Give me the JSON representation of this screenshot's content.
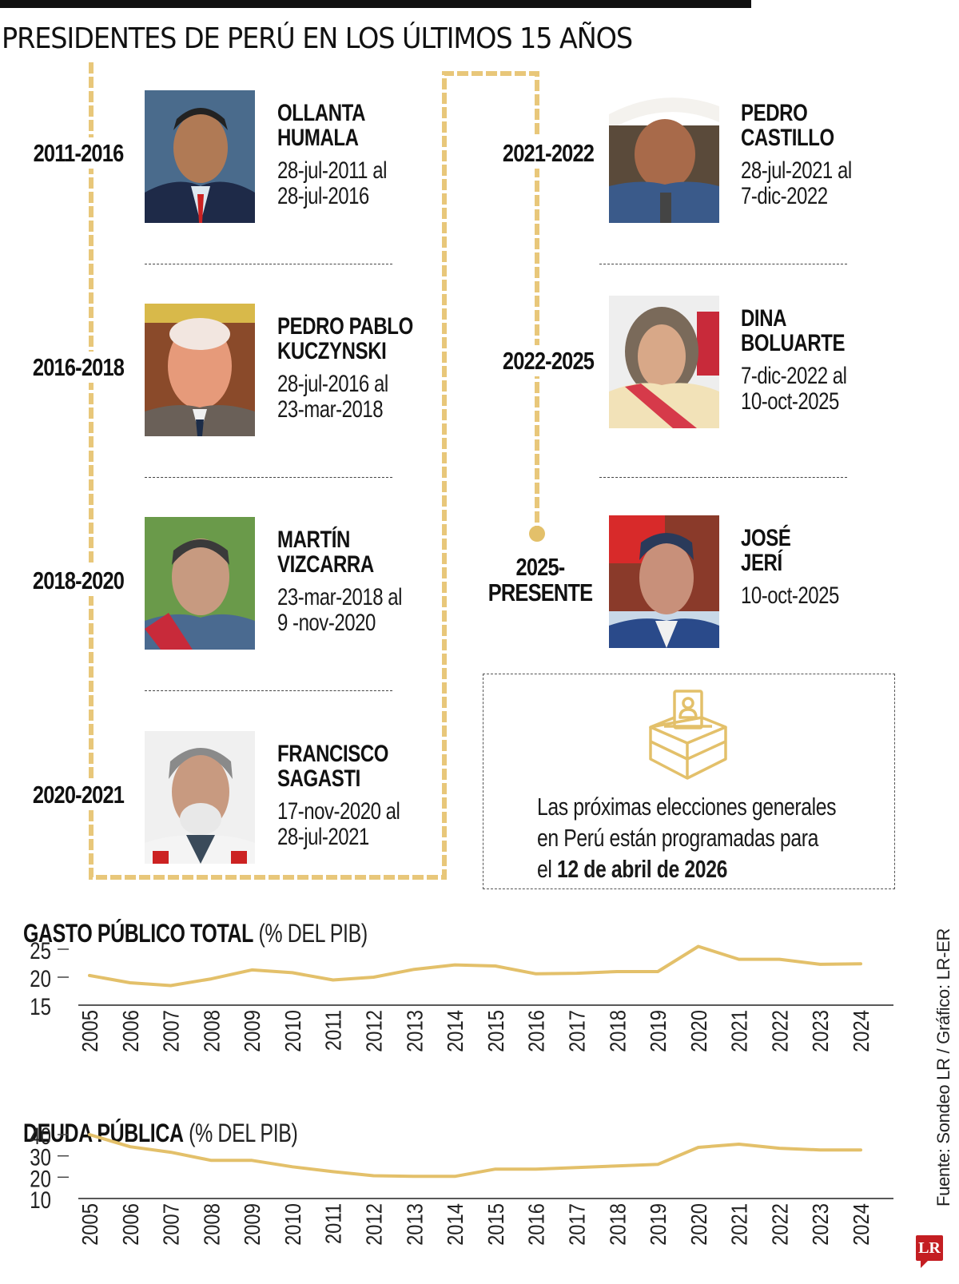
{
  "header": {
    "title": "PRESIDENTES DE PERÚ EN LOS ÚLTIMOS 15 AÑOS"
  },
  "colors": {
    "accent": "#E3C06A",
    "timeline": "#E8C77A",
    "text": "#111111",
    "logo": "#C41E22"
  },
  "presidents": [
    {
      "period": "2011-2016",
      "name_line1": "OLLANTA",
      "name_line2": "HUMALA",
      "dates_line1": "28-jul-2011 al",
      "dates_line2": "28-jul-2016"
    },
    {
      "period": "2016-2018",
      "name_line1": "PEDRO PABLO",
      "name_line2": "KUCZYNSKI",
      "dates_line1": "28-jul-2016 al",
      "dates_line2": "23-mar-2018"
    },
    {
      "period": "2018-2020",
      "name_line1": "MARTÍN",
      "name_line2": "VIZCARRA",
      "dates_line1": "23-mar-2018 al",
      "dates_line2": "9 -nov-2020"
    },
    {
      "period": "2020-2021",
      "name_line1": "FRANCISCO",
      "name_line2": "SAGASTI",
      "dates_line1": "17-nov-2020 al",
      "dates_line2": "28-jul-2021"
    },
    {
      "period": "2021-2022",
      "name_line1": "PEDRO",
      "name_line2": "CASTILLO",
      "dates_line1": "28-jul-2021 al",
      "dates_line2": "7-dic-2022"
    },
    {
      "period": "2022-2025",
      "name_line1": "DINA",
      "name_line2": "BOLUARTE",
      "dates_line1": "7-dic-2022 al",
      "dates_line2": "10-oct-2025"
    },
    {
      "period_line1": "2025-",
      "period_line2": "PRESENTE",
      "name_line1": "JOSÉ",
      "name_line2": "JERÍ",
      "dates_line1": "10-oct-2025"
    }
  ],
  "election": {
    "icon": "ballot-box-icon",
    "text_line1": "Las próximas elecciones generales",
    "text_line2": "en Perú están programadas para",
    "text_line3_prefix": "el",
    "text_line3_bold": "12 de abril de 2026"
  },
  "footer": {
    "source": "Fuente: Sondeo LR / Gráfico: LR-ER",
    "logo": "LR"
  },
  "chart_data": [
    {
      "type": "line",
      "title": "GASTO PÚBLICO TOTAL",
      "subtitle": "(% DEL PIB)",
      "xlabel": "",
      "ylabel": "% del PIB",
      "x": [
        2005,
        2006,
        2007,
        2008,
        2009,
        2010,
        2011,
        2012,
        2013,
        2014,
        2015,
        2016,
        2017,
        2018,
        2019,
        2020,
        2021,
        2022,
        2023,
        2024
      ],
      "y_ticks": [
        15,
        20,
        25
      ],
      "ylim": [
        15,
        25
      ],
      "grid": false,
      "series": [
        {
          "name": "Gasto público total",
          "color": "#E3C06A",
          "values": [
            20.3,
            19.0,
            18.5,
            19.7,
            21.3,
            20.8,
            19.5,
            20.0,
            21.4,
            22.2,
            22.0,
            20.6,
            20.7,
            21.0,
            21.0,
            25.5,
            23.2,
            23.2,
            22.3,
            22.4
          ]
        }
      ]
    },
    {
      "type": "line",
      "title": "DEUDA PÚBLICA",
      "subtitle": "(% DEL PIB)",
      "xlabel": "",
      "ylabel": "% del PIB",
      "x": [
        2005,
        2006,
        2007,
        2008,
        2009,
        2010,
        2011,
        2012,
        2013,
        2014,
        2015,
        2016,
        2017,
        2018,
        2019,
        2020,
        2021,
        2022,
        2023,
        2024
      ],
      "y_ticks": [
        10,
        20,
        30,
        40
      ],
      "ylim": [
        10,
        40
      ],
      "grid": false,
      "series": [
        {
          "name": "Deuda pública",
          "color": "#E3C06A",
          "values": [
            40.0,
            34.3,
            31.7,
            27.9,
            27.9,
            24.9,
            22.6,
            20.7,
            20.4,
            20.4,
            23.8,
            23.8,
            24.5,
            25.3,
            26.0,
            34.0,
            35.5,
            33.6,
            32.8,
            32.8
          ]
        }
      ]
    }
  ]
}
